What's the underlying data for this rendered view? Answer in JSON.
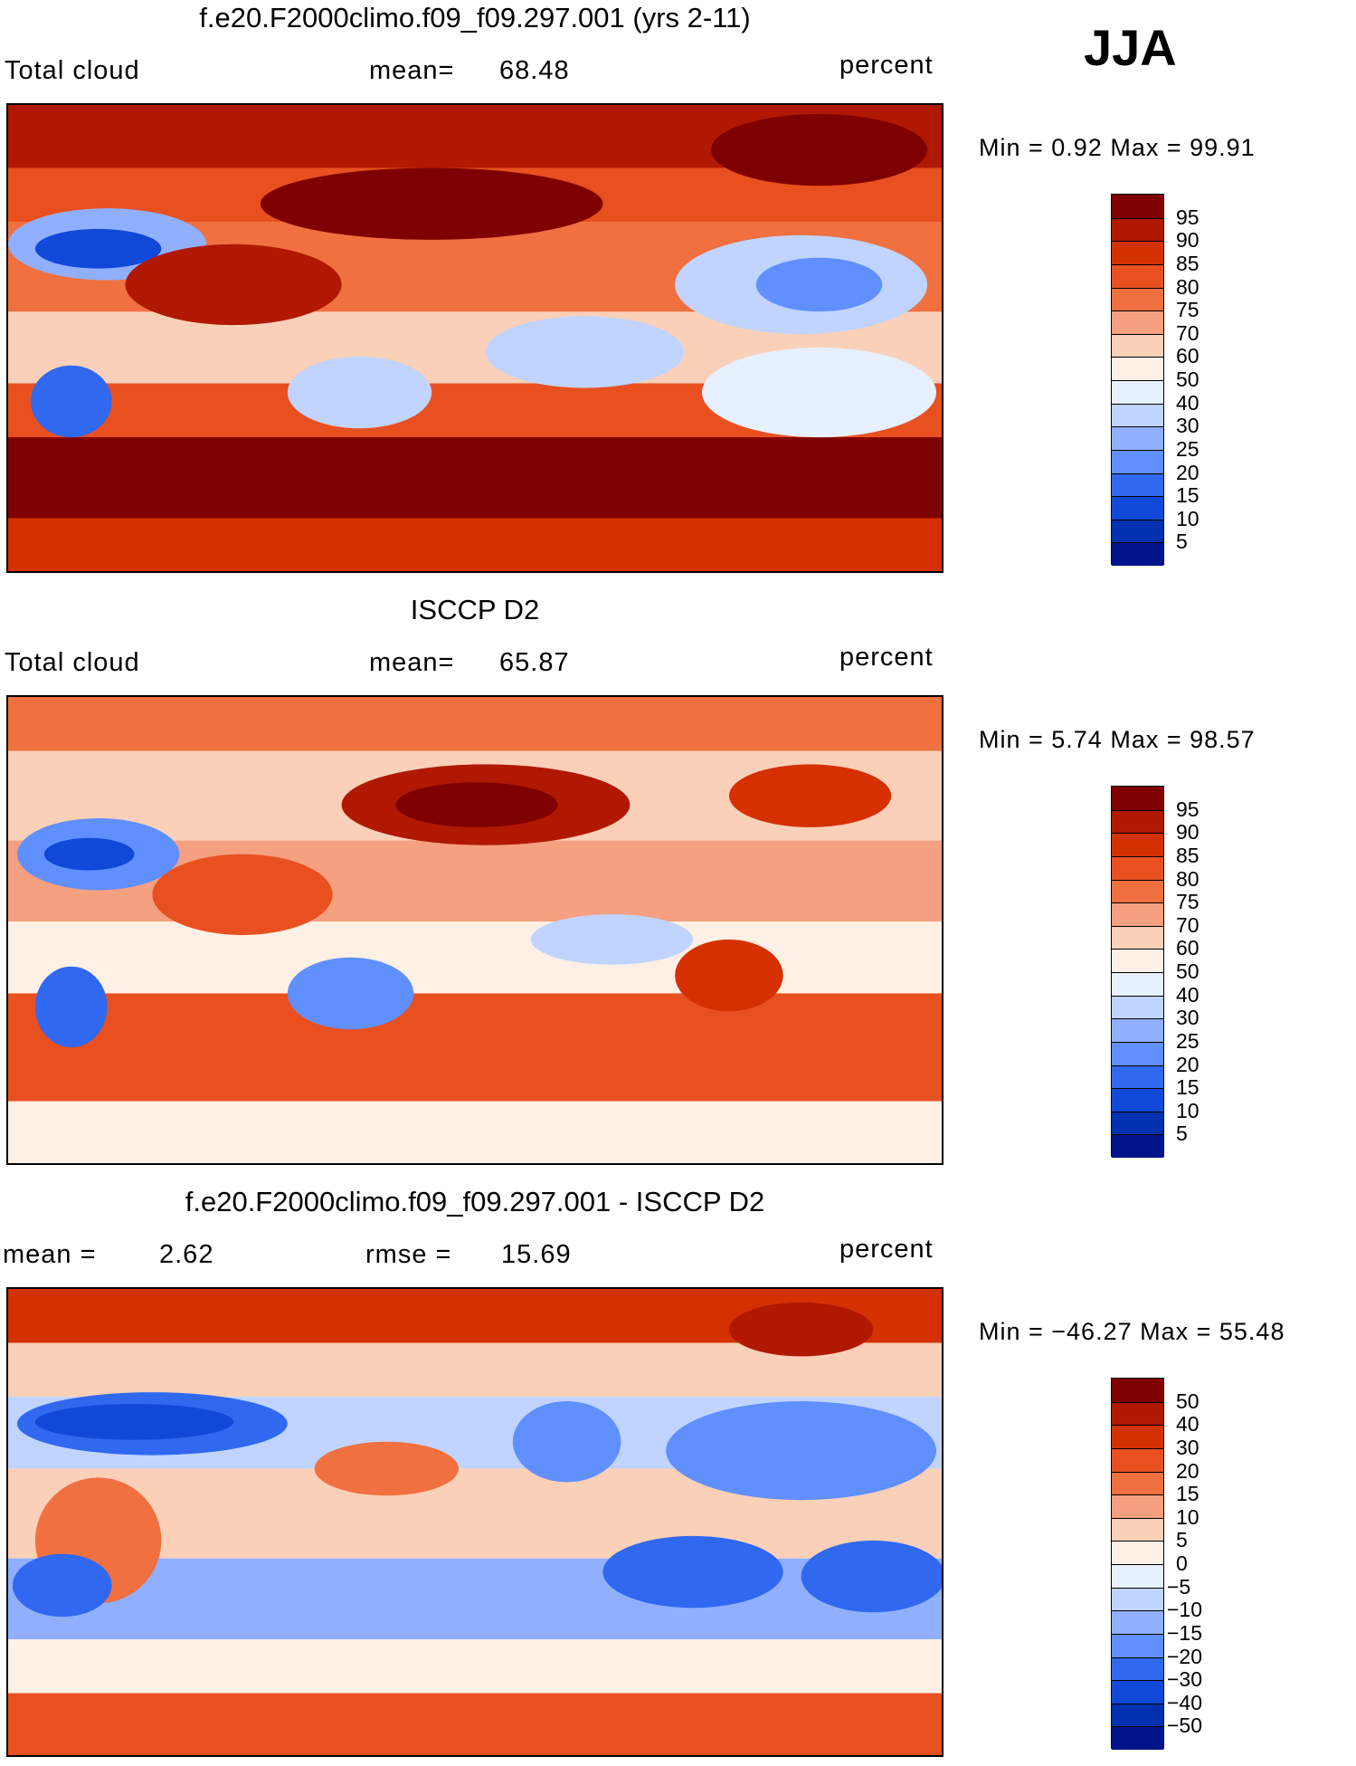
{
  "season": "JJA",
  "unit": "percent",
  "panels": [
    {
      "title": "f.e20.F2000climo.f09_f09.297.001 (yrs 2-11)",
      "left_label": "Total cloud",
      "stat_label": "mean=",
      "stat_value": "68.48",
      "min_max": "Min =    0.92 Max =   99.91",
      "colorbar_ticks": [
        "95",
        "90",
        "85",
        "80",
        "75",
        "70",
        "60",
        "50",
        "40",
        "30",
        "25",
        "20",
        "15",
        "10",
        "5"
      ]
    },
    {
      "title": "ISCCP D2",
      "left_label": "Total cloud",
      "stat_label": "mean=",
      "stat_value": "65.87",
      "min_max": "Min =    5.74 Max =   98.57",
      "colorbar_ticks": [
        "95",
        "90",
        "85",
        "80",
        "75",
        "70",
        "60",
        "50",
        "40",
        "30",
        "25",
        "20",
        "15",
        "10",
        "5"
      ]
    },
    {
      "title": "f.e20.F2000climo.f09_f09.297.001 - ISCCP D2",
      "left_label": "mean =",
      "left_value": "2.62",
      "stat_label": "rmse =",
      "stat_value": "15.69",
      "min_max": "Min = −46.27 Max =   55.48",
      "colorbar_ticks": [
        "50",
        "40",
        "30",
        "20",
        "15",
        "10",
        "5",
        "0",
        "−5",
        "−10",
        "−15",
        "−20",
        "−30",
        "−40",
        "−50"
      ]
    }
  ],
  "colors": {
    "levels_16": [
      "#7f0000",
      "#b01800",
      "#d43000",
      "#e85020",
      "#f07040",
      "#f5a080",
      "#fad0b8",
      "#fff0e6",
      "#e6f0ff",
      "#c0d4ff",
      "#90b0ff",
      "#6090ff",
      "#3068f0",
      "#1048d8",
      "#0030b0",
      "#00148a"
    ],
    "coast": "#000000"
  }
}
